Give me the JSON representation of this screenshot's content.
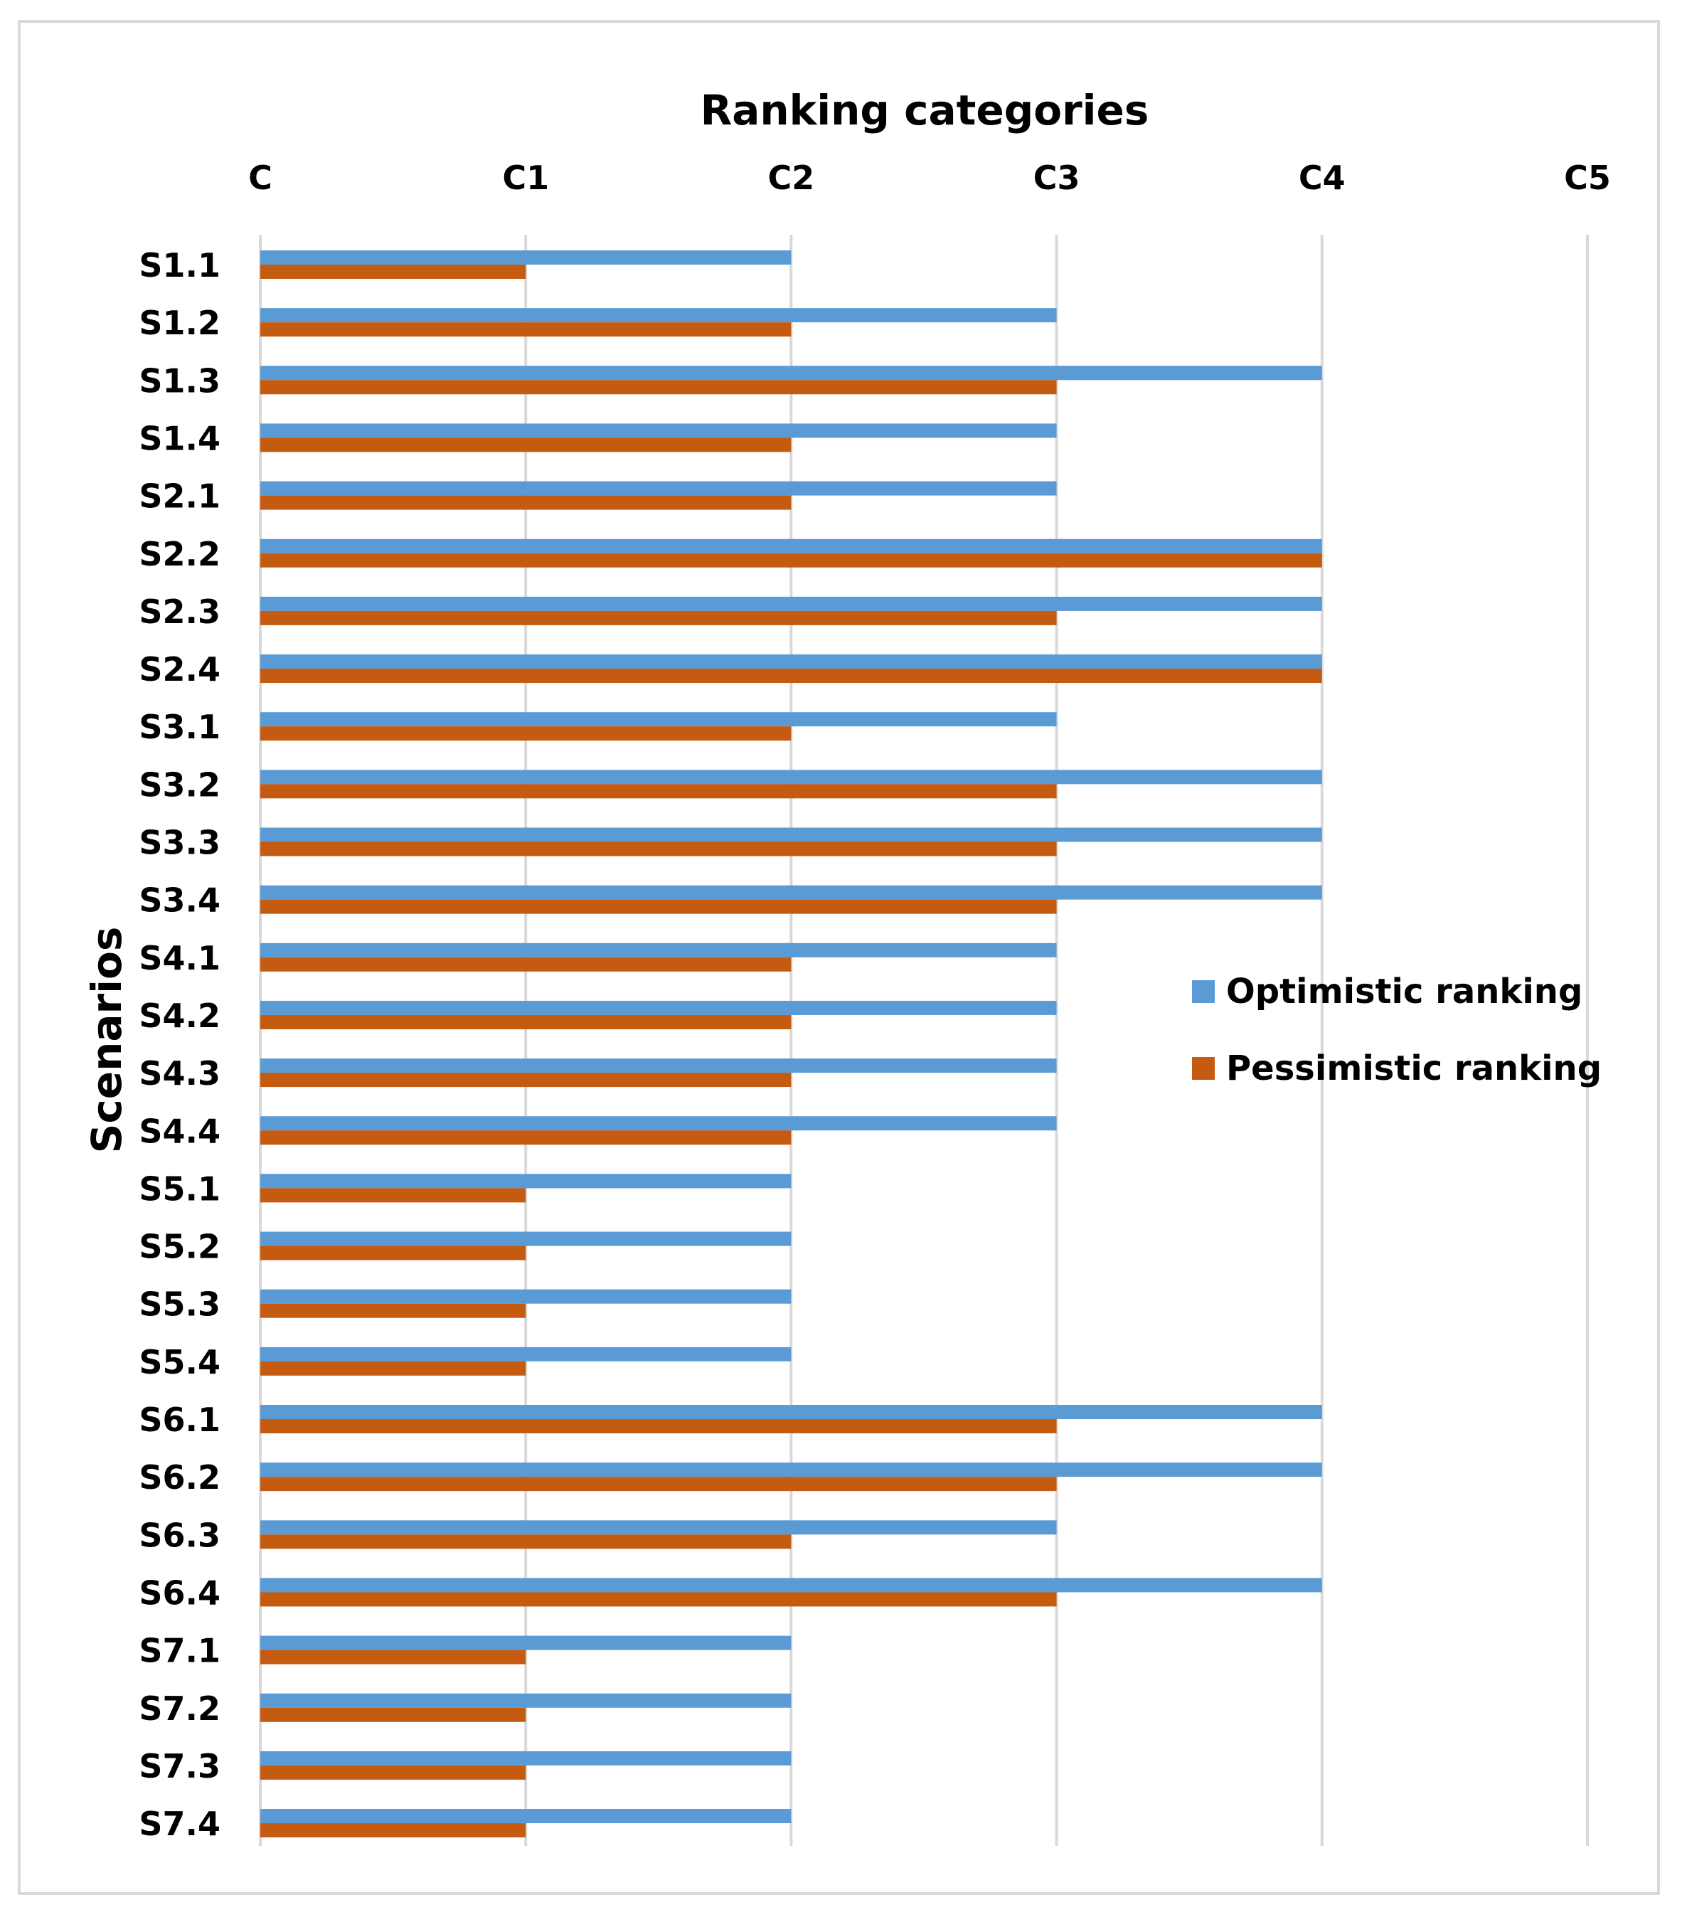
{
  "chart_data": {
    "type": "bar",
    "orientation": "horizontal",
    "title": "",
    "xlabel": "Ranking categories",
    "ylabel": "Scenarios",
    "x_ticks": [
      "C",
      "C1",
      "C2",
      "C3",
      "C4",
      "C5"
    ],
    "xlim": [
      0,
      5
    ],
    "x_axis_position": "top",
    "grid": true,
    "legend_position": "right",
    "categories": [
      "S1.1",
      "S1.2",
      "S1.3",
      "S1.4",
      "S2.1",
      "S2.2",
      "S2.3",
      "S2.4",
      "S3.1",
      "S3.2",
      "S3.3",
      "S3.4",
      "S4.1",
      "S4.2",
      "S4.3",
      "S4.4",
      "S5.1",
      "S5.2",
      "S5.3",
      "S5.4",
      "S6.1",
      "S6.2",
      "S6.3",
      "S6.4",
      "S7.1",
      "S7.2",
      "S7.3",
      "S7.4"
    ],
    "series": [
      {
        "name": "Optimistic ranking",
        "color": "#5B9BD5",
        "values": [
          2,
          3,
          4,
          3,
          3,
          4,
          4,
          4,
          3,
          4,
          4,
          4,
          3,
          3,
          3,
          3,
          2,
          2,
          2,
          2,
          4,
          4,
          3,
          4,
          2,
          2,
          2,
          2
        ]
      },
      {
        "name": "Pessimistic ranking",
        "color": "#C55A11",
        "values": [
          1,
          2,
          3,
          2,
          2,
          4,
          3,
          4,
          2,
          3,
          3,
          3,
          2,
          2,
          2,
          2,
          1,
          1,
          1,
          1,
          3,
          3,
          2,
          3,
          1,
          1,
          1,
          1
        ]
      }
    ]
  }
}
